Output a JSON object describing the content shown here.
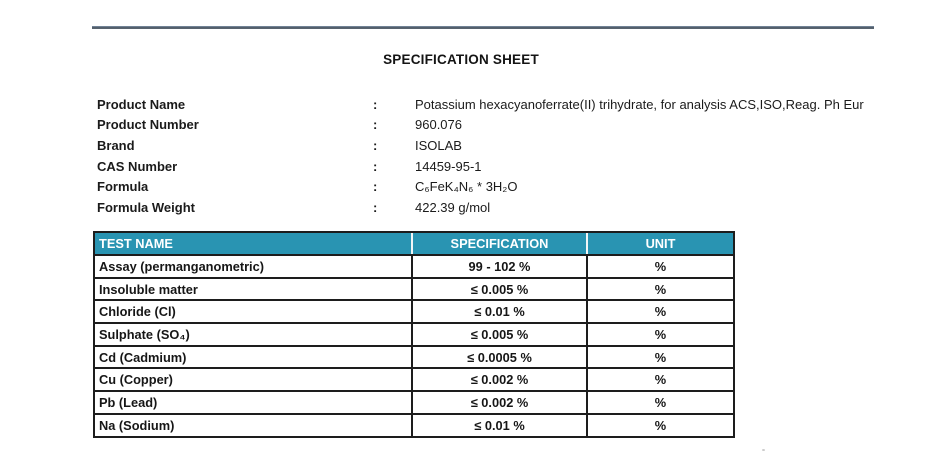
{
  "doc": {
    "title": "SPECIFICATION SHEET"
  },
  "colors": {
    "table_header_teal": "#2994b2",
    "table_border": "#1d1d1d",
    "top_rule": "#4c5762",
    "text": "#1b1b1b"
  },
  "product_info": {
    "separator": ":",
    "rows": [
      {
        "label": "Product Name",
        "value": "Potassium hexacyanoferrate(II) trihydrate, for analysis ACS,ISO,Reag. Ph Eur"
      },
      {
        "label": "Product Number",
        "value": "960.076"
      },
      {
        "label": "Brand",
        "value": "ISOLAB"
      },
      {
        "label": "CAS Number",
        "value": "14459-95-1"
      },
      {
        "label": "Formula",
        "value": "C₆FeK₄N₆ * 3H₂O"
      },
      {
        "label": "Formula Weight",
        "value": "422.39 g/mol"
      }
    ]
  },
  "spec_table": {
    "headers": {
      "test": "TEST NAME",
      "spec": "SPECIFICATION",
      "unit": "UNIT"
    },
    "rows": [
      {
        "test": "Assay (permanganometric)",
        "spec": "99 - 102 %",
        "unit": "%"
      },
      {
        "test": "Insoluble matter",
        "spec": "≤ 0.005 %",
        "unit": "%"
      },
      {
        "test": "Chloride (Cl)",
        "spec": "≤ 0.01 %",
        "unit": "%"
      },
      {
        "test": "Sulphate (SO₄)",
        "spec": "≤ 0.005 %",
        "unit": "%"
      },
      {
        "test": "Cd (Cadmium)",
        "spec": "≤ 0.0005 %",
        "unit": "%"
      },
      {
        "test": "Cu (Copper)",
        "spec": "≤ 0.002 %",
        "unit": "%"
      },
      {
        "test": "Pb (Lead)",
        "spec": "≤ 0.002 %",
        "unit": "%"
      },
      {
        "test": "Na (Sodium)",
        "spec": "≤ 0.01 %",
        "unit": "%"
      }
    ]
  }
}
